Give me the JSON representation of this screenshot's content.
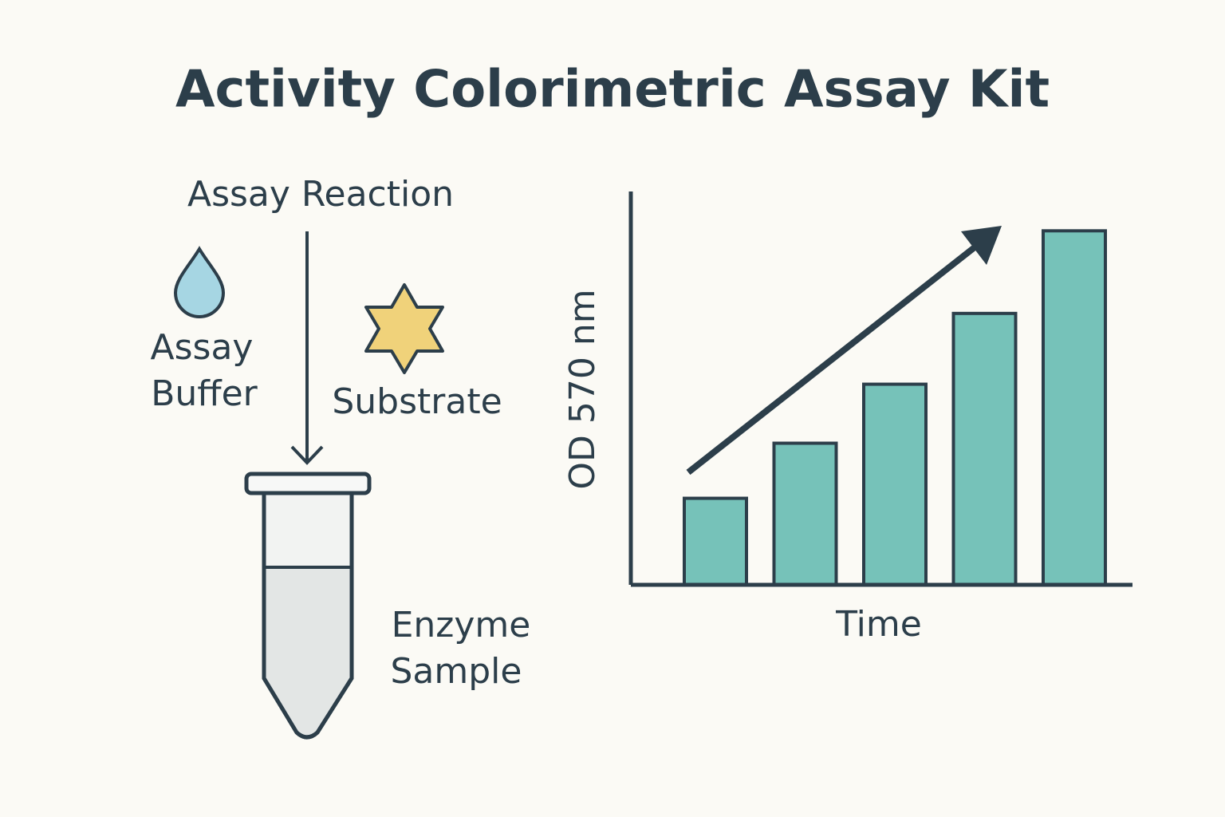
{
  "title": "Activity Colorimetric Assay Kit",
  "reaction": {
    "label": "Assay Reaction"
  },
  "buffer": {
    "lines": [
      "Assay",
      "Buffer"
    ]
  },
  "substrate": {
    "label": "Substrate"
  },
  "sample": {
    "lines": [
      "Enzyme",
      "Sample"
    ]
  },
  "chart_data": {
    "type": "bar",
    "ylabel": "OD 570 nm",
    "xlabel": "Time",
    "values": [
      22,
      36,
      51,
      69,
      90
    ],
    "ylim": [
      0,
      100
    ],
    "color": "#76c2b9"
  }
}
